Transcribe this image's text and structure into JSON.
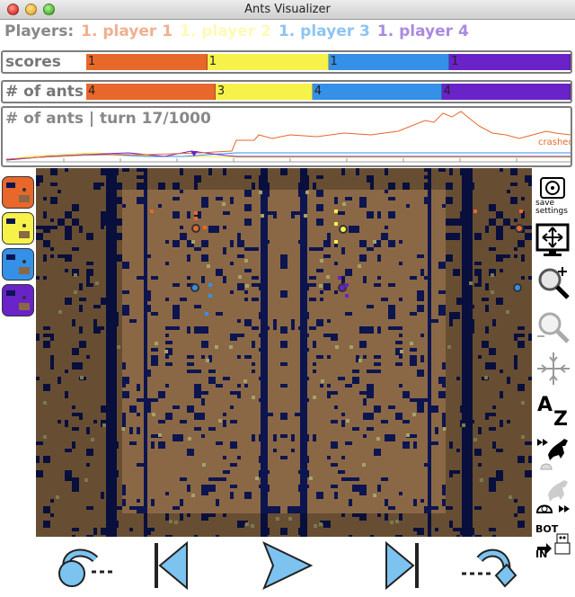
{
  "window": {
    "title": "Ants Visualizer"
  },
  "players": {
    "label": "Players:",
    "list": [
      {
        "name": "1. player 1",
        "color": "#f0b090"
      },
      {
        "name": "1. player 2",
        "color": "#fffab8"
      },
      {
        "name": "1. player 3",
        "color": "#8ec4f3"
      },
      {
        "name": "1. player 4",
        "color": "#a98be0"
      }
    ]
  },
  "scores": {
    "label": "scores",
    "values": [
      "1",
      "1",
      "1",
      "1"
    ],
    "fractions": [
      0.25,
      0.25,
      0.25,
      0.25
    ],
    "colors": [
      "#e8672b",
      "#f6f24a",
      "#3590e7",
      "#6a22c9"
    ]
  },
  "ants": {
    "label": "# of ants",
    "values": [
      "4",
      "3",
      "4",
      "4"
    ],
    "fractions": [
      0.267,
      0.2,
      0.267,
      0.266
    ],
    "colors": [
      "#e8672b",
      "#f6f24a",
      "#3590e7",
      "#6a22c9"
    ]
  },
  "graph": {
    "label": "# of ants | turn 17/1000",
    "turn": 17,
    "total_turns": 1000,
    "crash_label": "crashed"
  },
  "map": {
    "background": "#8a6845",
    "water": "#0d1550",
    "food": "#a6a26a"
  },
  "toolbar": {
    "save_label": "save\nsettings",
    "az_a": "A",
    "az_z": "Z",
    "bot_label": "BOT",
    "in_label": "IN"
  },
  "controls": {
    "icons": [
      "skip-back-icon",
      "step-back-icon",
      "play-icon",
      "step-forward-icon",
      "skip-forward-icon"
    ]
  }
}
